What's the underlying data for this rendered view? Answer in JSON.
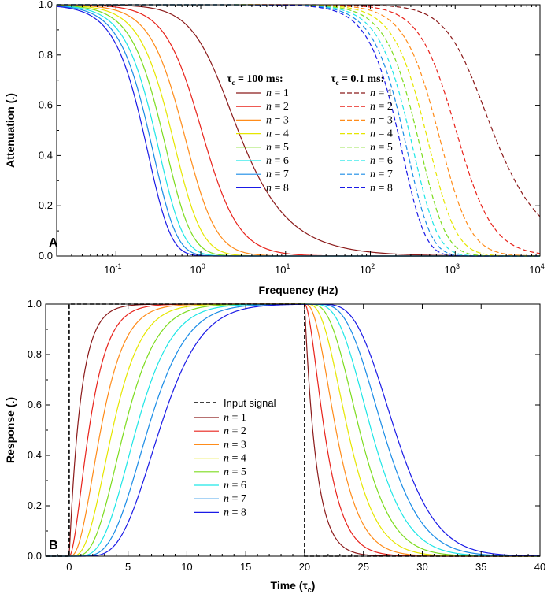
{
  "colors": [
    "#8b1a1a",
    "#e8231b",
    "#ff8c1a",
    "#e6e600",
    "#7ddc1f",
    "#1fe6e6",
    "#1a8ce6",
    "#1a1ae6"
  ],
  "chart_data": [
    {
      "type": "line",
      "panel": "A",
      "xscale": "log",
      "xlabel": "Frequency  (Hz)",
      "ylabel": "Attenuation  (.)",
      "xlim": [
        0.02,
        10000
      ],
      "ylim": [
        0,
        1
      ],
      "x_tick_labels": [
        {
          "value": 0.1,
          "base": "10",
          "exp": "-1"
        },
        {
          "value": 1,
          "base": "10",
          "exp": "0"
        },
        {
          "value": 10,
          "base": "10",
          "exp": "1"
        },
        {
          "value": 100,
          "base": "10",
          "exp": "2"
        },
        {
          "value": 1000,
          "base": "10",
          "exp": "3"
        },
        {
          "value": 10000,
          "base": "10",
          "exp": "4"
        }
      ],
      "y_tick_labels": [
        "0.0",
        "0.2",
        "0.4",
        "0.6",
        "0.8",
        "1.0"
      ],
      "y_ticks": [
        0,
        0.2,
        0.4,
        0.6,
        0.8,
        1.0
      ],
      "groups": [
        {
          "label": "τc = 100 ms:",
          "tau_label": "τ",
          "tau_sub": "c",
          "tau_rest": " = 100 ms:",
          "style": "solid",
          "f_half_n1": 1.59
        },
        {
          "label": "τc = 0.1 ms:",
          "tau_label": "τ",
          "tau_sub": "c",
          "tau_rest": " = 0.1 ms:",
          "style": "dashed",
          "f_half_n1": 1590
        }
      ],
      "series": [
        {
          "name": "n = 1",
          "n": 1
        },
        {
          "name": "n = 2",
          "n": 2
        },
        {
          "name": "n = 3",
          "n": 3
        },
        {
          "name": "n = 4",
          "n": 4
        },
        {
          "name": "n = 5",
          "n": 5
        },
        {
          "name": "n = 6",
          "n": 6
        },
        {
          "name": "n = 7",
          "n": 7
        },
        {
          "name": "n = 8",
          "n": 8
        }
      ],
      "legend_position": "center-right"
    },
    {
      "type": "line",
      "panel": "B",
      "xlabel": "Time  (τc)",
      "xlabel_main": "Time  (",
      "xlabel_tau": "τ",
      "xlabel_sub": "c",
      "xlabel_end": ")",
      "ylabel": "Response  (.)",
      "xlim": [
        -2,
        40
      ],
      "ylim": [
        0,
        1
      ],
      "x_ticks": [
        0,
        5,
        10,
        15,
        20,
        25,
        30,
        35,
        40
      ],
      "x_tick_labels": [
        "0",
        "5",
        "10",
        "15",
        "20",
        "25",
        "30",
        "35",
        "40"
      ],
      "y_ticks": [
        0,
        0.2,
        0.4,
        0.6,
        0.8,
        1.0
      ],
      "y_tick_labels": [
        "0.0",
        "0.2",
        "0.4",
        "0.6",
        "0.8",
        "1.0"
      ],
      "input_signal": {
        "name": "Input signal",
        "on": 0,
        "off": 20
      },
      "series": [
        {
          "name": "n = 1",
          "n": 1
        },
        {
          "name": "n = 2",
          "n": 2
        },
        {
          "name": "n = 3",
          "n": 3
        },
        {
          "name": "n = 4",
          "n": 4
        },
        {
          "name": "n = 5",
          "n": 5
        },
        {
          "name": "n = 6",
          "n": 6
        },
        {
          "name": "n = 7",
          "n": 7
        },
        {
          "name": "n = 8",
          "n": 8
        }
      ],
      "legend_position": "center"
    }
  ]
}
